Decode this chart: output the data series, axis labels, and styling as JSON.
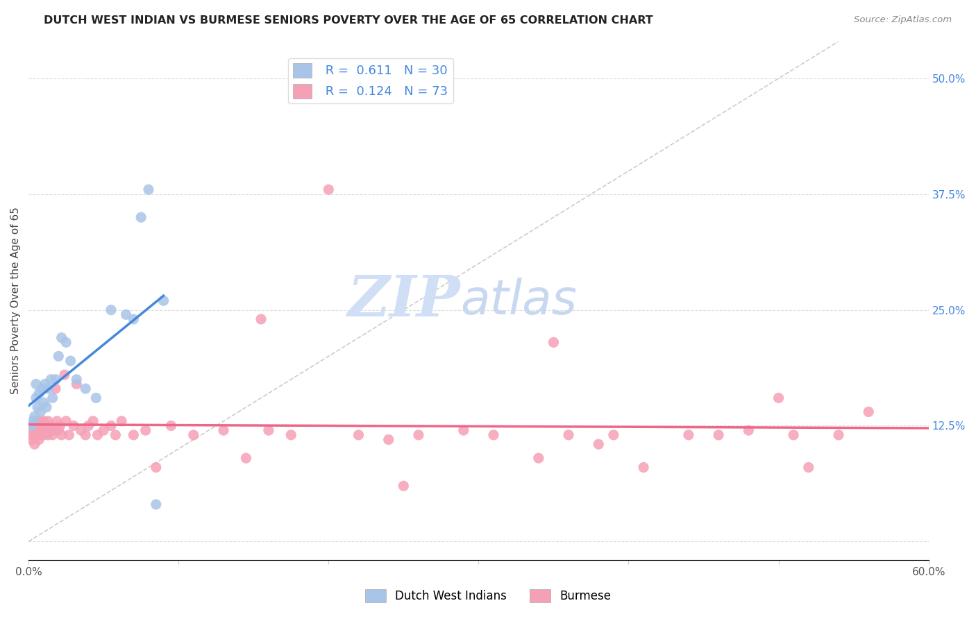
{
  "title": "DUTCH WEST INDIAN VS BURMESE SENIORS POVERTY OVER THE AGE OF 65 CORRELATION CHART",
  "source": "Source: ZipAtlas.com",
  "ylabel": "Seniors Poverty Over the Age of 65",
  "xlim": [
    0.0,
    0.6
  ],
  "ylim": [
    -0.02,
    0.54
  ],
  "plot_ylim": [
    -0.02,
    0.54
  ],
  "xticks": [
    0.0,
    0.1,
    0.2,
    0.3,
    0.4,
    0.5,
    0.6
  ],
  "xticklabels": [
    "0.0%",
    "",
    "",
    "",
    "",
    "",
    "60.0%"
  ],
  "yticks_right": [
    0.0,
    0.125,
    0.25,
    0.375,
    0.5
  ],
  "yticklabels_right": [
    "",
    "12.5%",
    "25.0%",
    "37.5%",
    "50.0%"
  ],
  "grid_color": "#dddddd",
  "background_color": "#ffffff",
  "dutch_color": "#a8c4e8",
  "burmese_color": "#f5a0b5",
  "dutch_line_color": "#4488dd",
  "burmese_line_color": "#ee6688",
  "diagonal_color": "#c0c0c0",
  "legend_R1": "R =  0.611",
  "legend_N1": "N = 30",
  "legend_R2": "R =  0.124",
  "legend_N2": "N = 73",
  "dutch_x": [
    0.002,
    0.003,
    0.004,
    0.005,
    0.005,
    0.006,
    0.007,
    0.008,
    0.009,
    0.01,
    0.011,
    0.012,
    0.013,
    0.015,
    0.016,
    0.018,
    0.02,
    0.022,
    0.025,
    0.028,
    0.032,
    0.038,
    0.045,
    0.055,
    0.065,
    0.07,
    0.075,
    0.08,
    0.085,
    0.09
  ],
  "dutch_y": [
    0.125,
    0.13,
    0.135,
    0.155,
    0.17,
    0.145,
    0.16,
    0.14,
    0.165,
    0.15,
    0.17,
    0.145,
    0.165,
    0.175,
    0.155,
    0.175,
    0.2,
    0.22,
    0.215,
    0.195,
    0.175,
    0.165,
    0.155,
    0.25,
    0.245,
    0.24,
    0.35,
    0.38,
    0.04,
    0.26
  ],
  "burmese_x": [
    0.001,
    0.002,
    0.003,
    0.004,
    0.004,
    0.005,
    0.005,
    0.006,
    0.007,
    0.007,
    0.008,
    0.008,
    0.009,
    0.01,
    0.01,
    0.011,
    0.012,
    0.013,
    0.013,
    0.014,
    0.015,
    0.016,
    0.017,
    0.018,
    0.019,
    0.02,
    0.021,
    0.022,
    0.024,
    0.025,
    0.027,
    0.03,
    0.032,
    0.035,
    0.038,
    0.04,
    0.043,
    0.046,
    0.05,
    0.055,
    0.058,
    0.062,
    0.07,
    0.078,
    0.085,
    0.095,
    0.11,
    0.13,
    0.145,
    0.16,
    0.175,
    0.2,
    0.22,
    0.24,
    0.26,
    0.29,
    0.31,
    0.34,
    0.36,
    0.38,
    0.39,
    0.41,
    0.44,
    0.46,
    0.48,
    0.5,
    0.51,
    0.52,
    0.54,
    0.56,
    0.155,
    0.25,
    0.35
  ],
  "burmese_y": [
    0.115,
    0.11,
    0.12,
    0.105,
    0.125,
    0.115,
    0.13,
    0.12,
    0.11,
    0.125,
    0.115,
    0.13,
    0.12,
    0.115,
    0.13,
    0.125,
    0.12,
    0.115,
    0.13,
    0.12,
    0.125,
    0.115,
    0.12,
    0.165,
    0.13,
    0.12,
    0.125,
    0.115,
    0.18,
    0.13,
    0.115,
    0.125,
    0.17,
    0.12,
    0.115,
    0.125,
    0.13,
    0.115,
    0.12,
    0.125,
    0.115,
    0.13,
    0.115,
    0.12,
    0.08,
    0.125,
    0.115,
    0.12,
    0.09,
    0.12,
    0.115,
    0.38,
    0.115,
    0.11,
    0.115,
    0.12,
    0.115,
    0.09,
    0.115,
    0.105,
    0.115,
    0.08,
    0.115,
    0.115,
    0.12,
    0.155,
    0.115,
    0.08,
    0.115,
    0.14,
    0.24,
    0.06,
    0.215
  ],
  "watermark_zip": "ZIP",
  "watermark_atlas": "atlas",
  "watermark_color_zip": "#d0dff5",
  "watermark_color_atlas": "#c8d8f0",
  "legend_label1": "Dutch West Indians",
  "legend_label2": "Burmese"
}
